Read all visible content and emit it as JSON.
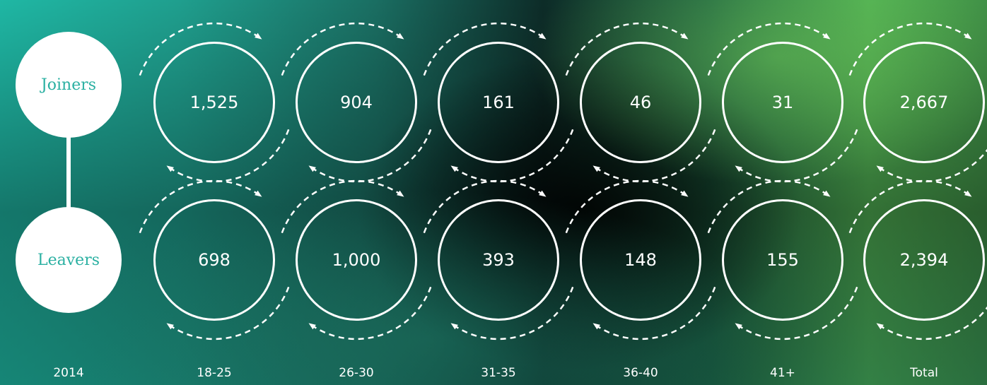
{
  "rows": [
    {
      "label": "Joiners",
      "values": [
        "1,525",
        "904",
        "161",
        "46",
        "31",
        "2,667"
      ]
    },
    {
      "label": "Leavers",
      "values": [
        "698",
        "1,000",
        "393",
        "148",
        "155",
        "2,394"
      ]
    }
  ],
  "columns": [
    "18-25",
    "26-30",
    "31-35",
    "36-40",
    "41+",
    "Total"
  ],
  "year": "2014",
  "colors": {
    "label_text": "#2bb0a2",
    "ring": "#ffffff"
  },
  "icons": [
    "dashed-circular-arrow-icon"
  ]
}
